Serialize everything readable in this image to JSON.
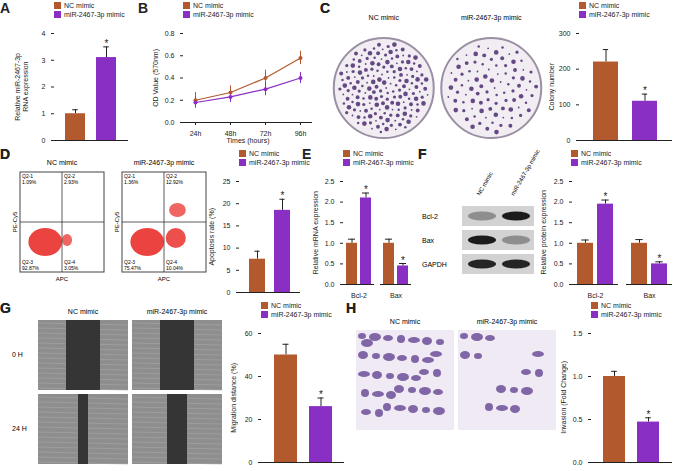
{
  "chart_data": [
    {
      "panel": "A",
      "type": "bar",
      "y_label": "Relative miR-2467-3p\nRNA expression",
      "categories": [
        "NC mimic",
        "miR-2467-3p mimic"
      ],
      "values": [
        1.0,
        3.1
      ],
      "errors": [
        0.15,
        0.4
      ],
      "significance": [
        null,
        "*"
      ],
      "colors": [
        "#b3592e",
        "#8a2fc4"
      ],
      "ylim": [
        0,
        4
      ],
      "yticks": [
        0,
        1,
        2,
        3,
        4
      ],
      "legend": "top-left",
      "tick_labels": "y"
    },
    {
      "panel": "B",
      "type": "line",
      "x_label": "Times (hours)",
      "y_label": "OD Value (570nm)",
      "x": [
        "24h",
        "48h",
        "72h",
        "96h"
      ],
      "series": [
        {
          "name": "NC mimic",
          "color": "#b3592e",
          "marker": "circle",
          "values": [
            0.2,
            0.27,
            0.4,
            0.58
          ],
          "errors": [
            0.07,
            0.06,
            0.07,
            0.06
          ]
        },
        {
          "name": "miR-2467-3p mimic",
          "color": "#8a2fc4",
          "marker": "circle",
          "values": [
            0.18,
            0.23,
            0.3,
            0.4
          ],
          "errors": [
            0.05,
            0.05,
            0.06,
            0.05
          ]
        }
      ],
      "ylim": [
        0,
        0.8
      ],
      "yticks": [
        {
          "value": 0,
          "label": "0.0"
        },
        0.2,
        0.4,
        0.6,
        0.8
      ],
      "legend": "top-left"
    },
    {
      "panel": "C",
      "type": "bar",
      "y_label": "Colony number",
      "categories": [
        "NC mimic",
        "miR-2467-3p mimic"
      ],
      "values": [
        220,
        110
      ],
      "errors": [
        35,
        20
      ],
      "significance": [
        null,
        "*"
      ],
      "colors": [
        "#b3592e",
        "#8a2fc4"
      ],
      "ylim": [
        0,
        300
      ],
      "yticks": [
        0,
        100,
        200,
        300
      ],
      "legend": "top-left",
      "tick_labels": "y"
    },
    {
      "panel": "D",
      "type": "bar",
      "y_label": "Apoptosis rate (%)",
      "categories": [
        "NC mimic",
        "miR-2467-3p mimic"
      ],
      "values": [
        7.5,
        18.5
      ],
      "errors": [
        1.8,
        2.5
      ],
      "significance": [
        null,
        "*"
      ],
      "colors": [
        "#b3592e",
        "#8a2fc4"
      ],
      "ylim": [
        0,
        25
      ],
      "yticks": [
        0,
        5,
        10,
        15,
        20,
        25
      ],
      "legend": "top-left",
      "tick_labels": "y"
    },
    {
      "panel": "E",
      "type": "bar",
      "y_label": "Relative mRNA expression",
      "categories": [
        "Bcl-2",
        "Bax"
      ],
      "series": [
        {
          "name": "NC mimic",
          "color": "#b3592e",
          "values": [
            1.0,
            1.0
          ],
          "errors": [
            0.1,
            0.1
          ]
        },
        {
          "name": "miR-2467-3p mimic",
          "color": "#8a2fc4",
          "values": [
            2.1,
            0.45
          ],
          "errors": [
            0.12,
            0.06
          ],
          "significance": [
            "*",
            "*"
          ]
        }
      ],
      "ylim": [
        0,
        2.5
      ],
      "yticks": [
        {
          "value": 0,
          "label": "0.0"
        },
        0.5,
        {
          "value": 1,
          "label": "1.0"
        },
        1.5,
        {
          "value": 2,
          "label": "2.0"
        },
        2.5
      ],
      "legend": "top-left"
    },
    {
      "panel": "F",
      "type": "bar",
      "y_label": "Relative protein expression",
      "categories": [
        "Bcl-2",
        "Bax"
      ],
      "series": [
        {
          "name": "NC mimic",
          "color": "#b3592e",
          "values": [
            1.0,
            1.0
          ],
          "errors": [
            0.08,
            0.09
          ]
        },
        {
          "name": "miR-2467-3p mimic",
          "color": "#8a2fc4",
          "values": [
            1.95,
            0.5
          ],
          "errors": [
            0.1,
            0.05
          ],
          "significance": [
            "*",
            "*"
          ]
        }
      ],
      "ylim": [
        0,
        2.5
      ],
      "yticks": [
        {
          "value": 0,
          "label": "0.0"
        },
        0.5,
        {
          "value": 1,
          "label": "1.0"
        },
        1.5,
        {
          "value": 2,
          "label": "2.0"
        },
        2.5
      ],
      "legend": "top-left"
    },
    {
      "panel": "G",
      "type": "bar",
      "y_label": "Migration distance (%)",
      "categories": [
        "NC mimic",
        "miR-2467-3p mimic"
      ],
      "values": [
        50,
        26
      ],
      "errors": [
        5,
        4
      ],
      "significance": [
        null,
        "*"
      ],
      "colors": [
        "#b3592e",
        "#8a2fc4"
      ],
      "ylim": [
        0,
        60
      ],
      "yticks": [
        0,
        20,
        40,
        60
      ],
      "legend": "top-left",
      "tick_labels": "y"
    },
    {
      "panel": "H",
      "type": "bar",
      "y_label": "Invasion (Fold Change)",
      "categories": [
        "NC mimic",
        "miR-2467-3p mimic"
      ],
      "values": [
        1.0,
        0.47
      ],
      "errors": [
        0.06,
        0.05
      ],
      "significance": [
        null,
        "*"
      ],
      "colors": [
        "#b3592e",
        "#8a2fc4"
      ],
      "ylim": [
        0,
        1.5
      ],
      "yticks": [
        {
          "value": 0,
          "label": "0.0"
        },
        0.5,
        {
          "value": 1,
          "label": "1.0"
        },
        1.5
      ],
      "legend": "top-left",
      "tick_labels": "y"
    }
  ],
  "images": [
    {
      "panel": "C",
      "captions": [
        "NC mimic",
        "miR-2467-3p mimic"
      ]
    },
    {
      "panel": "D",
      "captions": [
        "NC mimic",
        "miR-2467-3p mimic"
      ],
      "x_label": "APC",
      "y_label": "PE-Cy5",
      "quadrants": [
        [
          {
            "name": "Q2-1",
            "text": "1.09%"
          },
          {
            "name": "Q2-2",
            "text": "2.93%"
          },
          {
            "name": "Q2-3",
            "text": "92.87%"
          },
          {
            "name": "Q2-4",
            "text": "3.05%"
          }
        ],
        [
          {
            "name": "Q2-1",
            "text": "1.36%"
          },
          {
            "name": "Q2-2",
            "text": "12.92%"
          },
          {
            "name": "Q2-3",
            "text": "75.47%"
          },
          {
            "name": "Q2-4",
            "text": "10.04%"
          }
        ]
      ]
    },
    {
      "panel": "F",
      "columns": [
        "NC mimic",
        "miR-2467-3p mimic"
      ],
      "rows": [
        "Bcl-2",
        "Bax",
        "GAPDH"
      ]
    },
    {
      "panel": "G",
      "columns": [
        "NC mimic",
        "miR-2467-3p mimic"
      ],
      "rows": [
        "0 H",
        "24 H"
      ]
    },
    {
      "panel": "H",
      "captions": [
        "NC mimic",
        "miR-2467-3p mimic"
      ]
    }
  ]
}
